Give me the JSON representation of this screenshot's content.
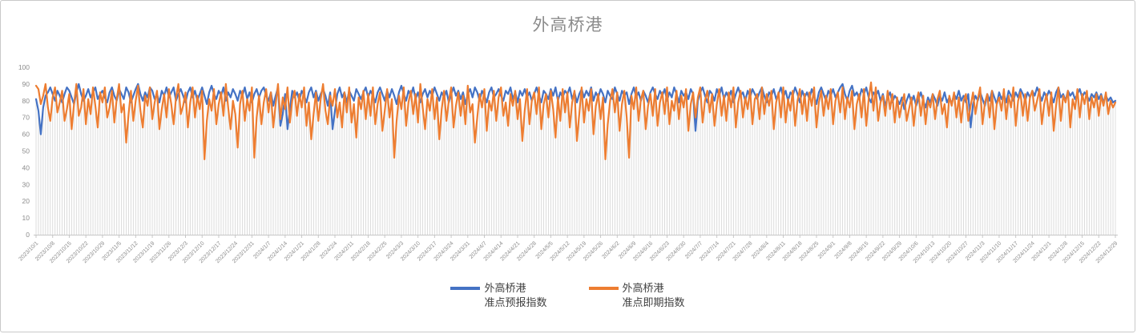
{
  "title": "外高桥港",
  "legend": {
    "entries": [
      {
        "line1": "外高桥港",
        "line2": "准点预报指数"
      },
      {
        "line1": "外高桥港",
        "line2": "准点即期指数"
      }
    ]
  },
  "chart_data": {
    "type": "line",
    "title": "外高桥港",
    "ylim": [
      0,
      100
    ],
    "y_ticks": [
      100,
      90,
      80,
      70,
      60,
      50,
      40,
      30,
      20,
      10,
      0
    ],
    "x_tick_interval": 7,
    "x_tick_labels": [
      "2023/10/1",
      "2023/10/8",
      "2023/10/15",
      "2023/10/22",
      "2023/10/29",
      "2023/11/5",
      "2023/11/12",
      "2023/11/19",
      "2023/11/26",
      "2023/12/3",
      "2023/12/10",
      "2023/12/17",
      "2023/12/24",
      "2023/12/31",
      "2024/1/7",
      "2024/1/14",
      "2024/1/21",
      "2024/1/28",
      "2024/2/4",
      "2024/2/11",
      "2024/2/18",
      "2024/2/25",
      "2024/3/3",
      "2024/3/10",
      "2024/3/17",
      "2024/3/24",
      "2024/3/31",
      "2024/4/7",
      "2024/4/14",
      "2024/4/21",
      "2024/4/28",
      "2024/5/5",
      "2024/5/12",
      "2024/5/19",
      "2024/5/26",
      "2024/6/2",
      "2024/6/9",
      "2024/6/16",
      "2024/6/23",
      "2024/6/30",
      "2024/7/7",
      "2024/7/14",
      "2024/7/21",
      "2024/7/28",
      "2024/8/4",
      "2024/8/11",
      "2024/8/18",
      "2024/8/25",
      "2024/9/1",
      "2024/9/8",
      "2024/9/15",
      "2024/9/22",
      "2024/9/29",
      "2024/10/6",
      "2024/10/13",
      "2024/10/20",
      "2024/10/27",
      "2024/11/3",
      "2024/11/10",
      "2024/11/17",
      "2024/11/24",
      "2024/12/1",
      "2024/12/8",
      "2024/12/15",
      "2024/12/22",
      "2024/12/29"
    ],
    "axis_text_color": "#8c8c8c",
    "axis_line_color": "#c6c6c6",
    "dropline_color": "#dcdcdc",
    "title_color": "#8b8b8b",
    "droplines": true,
    "legend_position": "bottom",
    "series": [
      {
        "name": "外高桥港 准点预报指数",
        "color": "#4472C4",
        "values": [
          81,
          74,
          60,
          76,
          83,
          85,
          88,
          84,
          80,
          86,
          83,
          79,
          84,
          88,
          86,
          82,
          78,
          85,
          90,
          84,
          80,
          83,
          87,
          82,
          85,
          88,
          81,
          84,
          86,
          82,
          79,
          85,
          88,
          83,
          80,
          87,
          84,
          81,
          88,
          85,
          79,
          83,
          87,
          90,
          84,
          80,
          85,
          82,
          88,
          86,
          81,
          84,
          79,
          86,
          83,
          88,
          82,
          85,
          88,
          80,
          84,
          87,
          83,
          79,
          85,
          88,
          82,
          86,
          80,
          84,
          88,
          83,
          78,
          85,
          89,
          84,
          81,
          86,
          83,
          88,
          80,
          85,
          82,
          87,
          84,
          80,
          86,
          83,
          88,
          81,
          85,
          79,
          84,
          87,
          82,
          86,
          88,
          83,
          80,
          85,
          77,
          83,
          88,
          65,
          72,
          84,
          63,
          75,
          86,
          82,
          85,
          80,
          86,
          83,
          79,
          85,
          88,
          82,
          86,
          80,
          84,
          87,
          83,
          77,
          85,
          63,
          74,
          84,
          88,
          82,
          85,
          79,
          86,
          83,
          80,
          87,
          84,
          81,
          85,
          88,
          82,
          86,
          83,
          79,
          85,
          88,
          84,
          80,
          86,
          82,
          87,
          83,
          78,
          85,
          89,
          84,
          80,
          86,
          83,
          88,
          81,
          85,
          79,
          84,
          87,
          82,
          86,
          83,
          88,
          84,
          80,
          85,
          82,
          86,
          79,
          84,
          88,
          83,
          86,
          81,
          85,
          78,
          84,
          87,
          82,
          88,
          85,
          80,
          86,
          83,
          79,
          85,
          88,
          82,
          84,
          87,
          83,
          80,
          86,
          84,
          88,
          81,
          85,
          79,
          86,
          83,
          87,
          82,
          85,
          80,
          84,
          88,
          83,
          79,
          86,
          84,
          81,
          87,
          83,
          88,
          80,
          85,
          82,
          86,
          84,
          88,
          81,
          85,
          79,
          84,
          87,
          82,
          86,
          83,
          88,
          80,
          85,
          82,
          87,
          84,
          79,
          86,
          83,
          81,
          88,
          84,
          80,
          86,
          83,
          85,
          78,
          84,
          88,
          82,
          85,
          80,
          86,
          83,
          79,
          85,
          88,
          84,
          81,
          86,
          83,
          87,
          80,
          85,
          82,
          88,
          84,
          79,
          86,
          83,
          85,
          81,
          87,
          84,
          62,
          80,
          85,
          88,
          83,
          79,
          86,
          84,
          80,
          87,
          83,
          88,
          81,
          85,
          82,
          86,
          79,
          84,
          88,
          83,
          85,
          80,
          86,
          82,
          87,
          84,
          81,
          85,
          88,
          83,
          79,
          85,
          83,
          87,
          81,
          84,
          88,
          82,
          86,
          80,
          85,
          83,
          88,
          84,
          79,
          86,
          82,
          85,
          81,
          87,
          83,
          78,
          85,
          88,
          84,
          80,
          86,
          83,
          87,
          82,
          85,
          88,
          90,
          84,
          80,
          86,
          89,
          83,
          85,
          81,
          87,
          84,
          88,
          82,
          79,
          85,
          83,
          86,
          80,
          84,
          77,
          82,
          85,
          79,
          83,
          81,
          78,
          82,
          75,
          80,
          84,
          79,
          83,
          77,
          81,
          85,
          80,
          76,
          82,
          79,
          84,
          81,
          77,
          83,
          80,
          85,
          79,
          82,
          78,
          84,
          81,
          86,
          80,
          83,
          79,
          84,
          64,
          78,
          83,
          80,
          85,
          81,
          77,
          84,
          80,
          86,
          82,
          78,
          85,
          81,
          84,
          79,
          86,
          83,
          80,
          85,
          82,
          87,
          84,
          80,
          85,
          82,
          86,
          83,
          88,
          84,
          80,
          85,
          82,
          86,
          83,
          79,
          85,
          88,
          82,
          84,
          80,
          86,
          83,
          85,
          81,
          84,
          87,
          82,
          85,
          83,
          80,
          84,
          82,
          85,
          81,
          84,
          79,
          83,
          80,
          82,
          79,
          80
        ]
      },
      {
        "name": "外高桥港 准点即期指数",
        "color": "#ED7D31",
        "values": [
          89,
          87,
          78,
          83,
          90,
          76,
          68,
          82,
          88,
          73,
          79,
          86,
          68,
          75,
          84,
          63,
          78,
          90,
          71,
          76,
          87,
          66,
          81,
          72,
          88,
          77,
          64,
          85,
          79,
          88,
          70,
          76,
          86,
          67,
          81,
          90,
          73,
          78,
          55,
          72,
          86,
          68,
          80,
          89,
          74,
          64,
          83,
          77,
          88,
          69,
          79,
          86,
          63,
          75,
          84,
          70,
          87,
          78,
          66,
          82,
          90,
          72,
          77,
          85,
          64,
          79,
          88,
          70,
          83,
          75,
          86,
          45,
          68,
          81,
          74,
          87,
          66,
          78,
          85,
          71,
          90,
          76,
          63,
          80,
          72,
          52,
          78,
          86,
          68,
          81,
          74,
          88,
          46,
          70,
          83,
          66,
          79,
          87,
          73,
          85,
          64,
          78,
          90,
          69,
          82,
          75,
          88,
          67,
          80,
          86,
          71,
          84,
          76,
          88,
          65,
          79,
          57,
          72,
          85,
          68,
          81,
          90,
          74,
          66,
          83,
          77,
          87,
          70,
          79,
          64,
          85,
          73,
          88,
          67,
          78,
          58,
          82,
          75,
          86,
          69,
          84,
          71,
          88,
          66,
          78,
          85,
          62,
          74,
          87,
          70,
          81,
          46,
          68,
          83,
          75,
          88,
          65,
          79,
          86,
          72,
          84,
          67,
          90,
          76,
          63,
          81,
          74,
          87,
          69,
          82,
          57,
          75,
          86,
          68,
          80,
          88,
          64,
          77,
          85,
          71,
          83,
          66,
          89,
          73,
          78,
          55,
          70,
          84,
          76,
          87,
          62,
          80,
          74,
          86,
          68,
          82,
          88,
          71,
          79,
          65,
          84,
          77,
          86,
          69,
          81,
          56,
          74,
          87,
          66,
          80,
          85,
          72,
          88,
          63,
          78,
          84,
          70,
          86,
          75,
          58,
          82,
          68,
          87,
          73,
          85,
          64,
          79,
          86,
          56,
          72,
          88,
          67,
          81,
          74,
          87,
          60,
          77,
          84,
          69,
          82,
          45,
          66,
          80,
          87,
          73,
          85,
          62,
          78,
          86,
          70,
          46,
          83,
          75,
          88,
          68,
          81,
          86,
          63,
          77,
          84,
          71,
          87,
          65,
          79,
          85,
          72,
          88,
          66,
          80,
          74,
          86,
          69,
          83,
          76,
          87,
          62,
          78,
          85,
          70,
          82,
          88,
          67,
          80,
          86,
          73,
          84,
          65,
          78,
          87,
          71,
          83,
          68,
          85,
          76,
          88,
          64,
          79,
          86,
          70,
          82,
          75,
          87,
          66,
          81,
          84,
          69,
          88,
          72,
          84,
          77,
          86,
          63,
          79,
          85,
          70,
          88,
          67,
          81,
          74,
          86,
          65,
          80,
          87,
          72,
          84,
          68,
          85,
          77,
          88,
          64,
          79,
          86,
          71,
          83,
          75,
          87,
          66,
          80,
          85,
          73,
          88,
          69,
          82,
          76,
          86,
          63,
          78,
          84,
          70,
          87,
          65,
          81,
          91,
          74,
          88,
          68,
          79,
          83,
          71,
          86,
          75,
          84,
          67,
          82,
          70,
          78,
          84,
          68,
          75,
          82,
          65,
          79,
          85,
          71,
          83,
          66,
          80,
          76,
          84,
          69,
          81,
          86,
          72,
          78,
          64,
          83,
          77,
          85,
          70,
          82,
          67,
          80,
          84,
          68,
          77,
          85,
          72,
          81,
          88,
          66,
          79,
          84,
          70,
          86,
          63,
          78,
          82,
          74,
          87,
          69,
          83,
          76,
          88,
          65,
          80,
          85,
          71,
          84,
          68,
          82,
          86,
          74,
          80,
          87,
          66,
          78,
          84,
          71,
          85,
          62,
          77,
          88,
          68,
          83,
          79,
          86,
          64,
          81,
          75,
          87,
          70,
          84,
          78,
          86,
          69,
          82,
          76,
          84,
          71,
          83,
          77,
          85,
          72,
          80,
          76,
          79
        ]
      }
    ]
  }
}
